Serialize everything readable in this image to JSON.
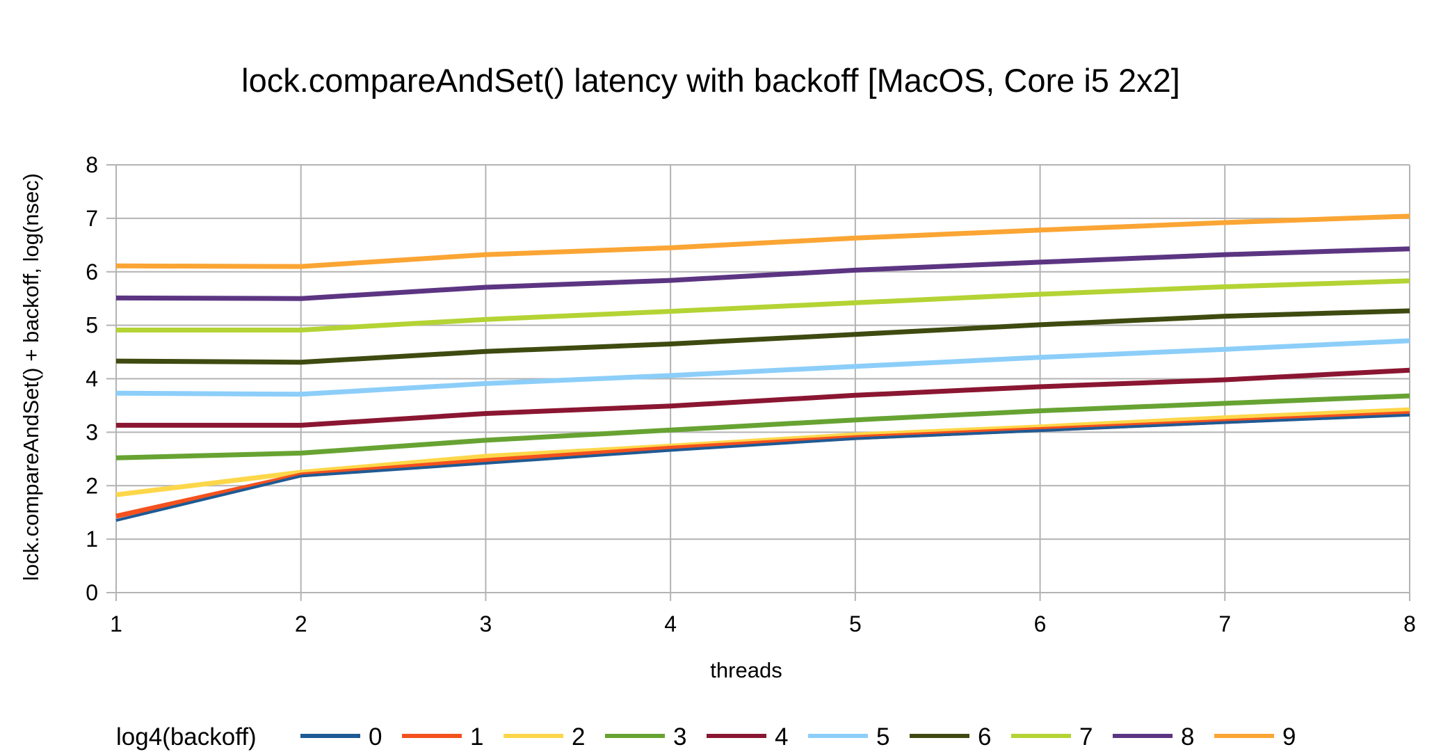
{
  "chart_data": {
    "type": "line",
    "title": "lock.compareAndSet() latency with backoff [MacOS, Core i5 2x2]",
    "xlabel": "threads",
    "ylabel": "lock.compareAndSet() + backoff, log(nsec)",
    "x": [
      1,
      2,
      3,
      4,
      5,
      6,
      7,
      8
    ],
    "xlim": [
      1,
      8
    ],
    "ylim": [
      0,
      8
    ],
    "yticks": [
      0,
      1,
      2,
      3,
      4,
      5,
      6,
      7,
      8
    ],
    "grid": true,
    "legend_position": "bottom",
    "legend_title": "log4(backoff)",
    "series": [
      {
        "name": "0",
        "color": "#1f5a94",
        "values": [
          1.35,
          2.18,
          2.42,
          2.66,
          2.88,
          3.03,
          3.18,
          3.32
        ]
      },
      {
        "name": "1",
        "color": "#f4511e",
        "values": [
          1.43,
          2.2,
          2.47,
          2.7,
          2.9,
          3.05,
          3.2,
          3.35
        ]
      },
      {
        "name": "2",
        "color": "#fdd74a",
        "values": [
          1.83,
          2.25,
          2.55,
          2.74,
          2.95,
          3.1,
          3.27,
          3.42
        ]
      },
      {
        "name": "3",
        "color": "#67a332",
        "values": [
          2.52,
          2.61,
          2.85,
          3.04,
          3.23,
          3.4,
          3.54,
          3.68
        ]
      },
      {
        "name": "4",
        "color": "#8a1632",
        "values": [
          3.13,
          3.13,
          3.35,
          3.49,
          3.69,
          3.85,
          3.98,
          4.16
        ]
      },
      {
        "name": "5",
        "color": "#8ccef9",
        "values": [
          3.73,
          3.71,
          3.91,
          4.06,
          4.23,
          4.4,
          4.55,
          4.71
        ]
      },
      {
        "name": "6",
        "color": "#3e4a10",
        "values": [
          4.33,
          4.31,
          4.51,
          4.65,
          4.83,
          5.01,
          5.17,
          5.27
        ]
      },
      {
        "name": "7",
        "color": "#b4d334",
        "values": [
          4.91,
          4.91,
          5.11,
          5.26,
          5.42,
          5.58,
          5.72,
          5.83
        ]
      },
      {
        "name": "8",
        "color": "#5c3582",
        "values": [
          5.51,
          5.5,
          5.71,
          5.84,
          6.03,
          6.18,
          6.32,
          6.43
        ]
      },
      {
        "name": "9",
        "color": "#fba534",
        "values": [
          6.11,
          6.1,
          6.32,
          6.45,
          6.63,
          6.78,
          6.92,
          7.04
        ]
      }
    ]
  }
}
